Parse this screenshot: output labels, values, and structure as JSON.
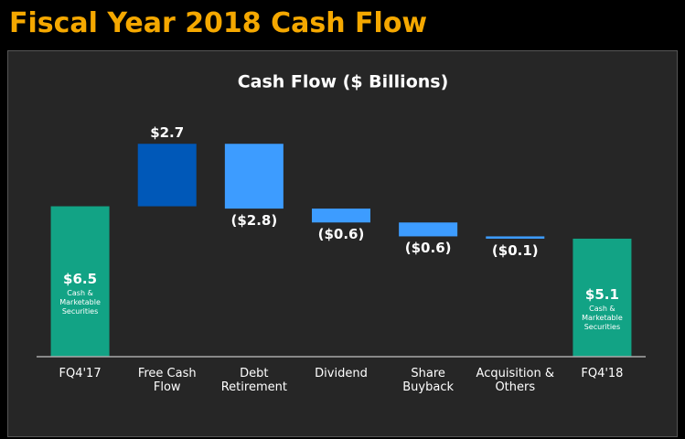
{
  "header": {
    "title": "Fiscal Year 2018 Cash Flow"
  },
  "chart_data": {
    "type": "waterfall",
    "title": "Cash Flow ($ Billions)",
    "categories": [
      "FQ4'17",
      "Free Cash Flow",
      "Debt Retirement",
      "Dividend",
      "Share Buyback",
      "Acquisition & Others",
      "FQ4'18"
    ],
    "values": [
      6.5,
      2.7,
      -2.8,
      -0.6,
      -0.6,
      -0.1,
      5.1
    ],
    "value_labels": [
      "$6.5",
      "$2.7",
      "($2.8)",
      "($0.6)",
      "($0.6)",
      "($0.1)",
      "$5.1"
    ],
    "measure": [
      "total",
      "relative",
      "relative",
      "relative",
      "relative",
      "relative",
      "total"
    ],
    "bar_notes": [
      "Cash & Marketable Securities",
      null,
      null,
      null,
      null,
      null,
      "Cash & Marketable Securities"
    ],
    "colors": {
      "total": "#12a385",
      "increase": "#0058b8",
      "decrease": "#3d9cff"
    },
    "ylim": [
      0,
      10
    ]
  }
}
